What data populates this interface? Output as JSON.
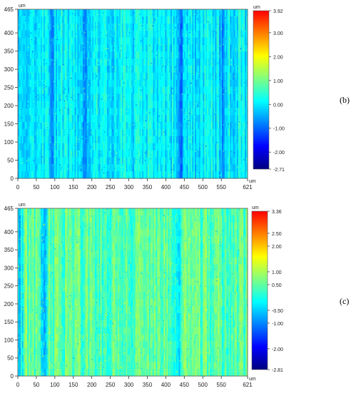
{
  "figures": [
    {
      "panel_label": "(b)",
      "unit_x": "um",
      "unit_y": "um",
      "unit_scale": "um",
      "x_ticks": [
        "0",
        "50",
        "100",
        "150",
        "200",
        "250",
        "300",
        "350",
        "400",
        "450",
        "500",
        "550",
        "621"
      ],
      "y_ticks": [
        "0",
        "50",
        "100",
        "150",
        "200",
        "250",
        "300",
        "350",
        "400",
        "465"
      ],
      "scale_ticks": [
        "3.92",
        "3.00",
        "2.00",
        "1.00",
        "0.00",
        "-1.00",
        "-2.00",
        "-2.71"
      ]
    },
    {
      "panel_label": "(c)",
      "unit_x": "um",
      "unit_y": "um",
      "unit_scale": "um",
      "x_ticks": [
        "0",
        "50",
        "100",
        "150",
        "200",
        "250",
        "300",
        "350",
        "400",
        "450",
        "500",
        "550",
        "621"
      ],
      "y_ticks": [
        "0",
        "50",
        "100",
        "150",
        "200",
        "250",
        "300",
        "350",
        "400",
        "465"
      ],
      "scale_ticks": [
        "3.36",
        "2.50",
        "2.00",
        "1.00",
        "0.50",
        "-0.50",
        "-1.00",
        "-2.00",
        "-2.81"
      ]
    }
  ],
  "chart_data": [
    {
      "type": "heatmap",
      "x_label": "um",
      "y_label": "um",
      "xlim": [
        0,
        621
      ],
      "ylim": [
        0,
        465
      ],
      "value_range": [
        -2.71,
        3.92
      ],
      "colorbar_unit": "um",
      "colorbar_ticks": [
        3.92,
        3.0,
        2.0,
        1.0,
        0.0,
        -1.0,
        -2.0,
        -2.71
      ],
      "colormap": [
        "#00007f",
        "#0000ff",
        "#0080ff",
        "#00ffff",
        "#80ff80",
        "#ffff00",
        "#ff8000",
        "#ff0000"
      ],
      "dominant_band": "cyan-green (around 0)",
      "dark_streak_centers_um": [
        90,
        180,
        440,
        555
      ]
    },
    {
      "type": "heatmap",
      "x_label": "um",
      "y_label": "um",
      "xlim": [
        0,
        621
      ],
      "ylim": [
        0,
        465
      ],
      "value_range": [
        -2.81,
        3.36
      ],
      "colorbar_unit": "um",
      "colorbar_ticks": [
        3.36,
        2.5,
        2.0,
        1.0,
        0.5,
        -0.5,
        -1.0,
        -2.0,
        -2.81
      ],
      "colormap": [
        "#00007f",
        "#0000ff",
        "#0080ff",
        "#00ffff",
        "#80ff80",
        "#ffff00",
        "#ff8000",
        "#ff0000"
      ],
      "dominant_band": "green (slightly above 0)",
      "dark_streak_centers_um": [
        70,
        5,
        430
      ]
    }
  ]
}
